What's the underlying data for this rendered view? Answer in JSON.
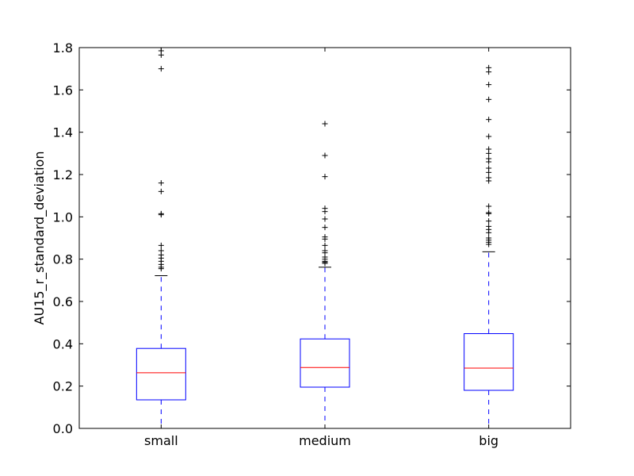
{
  "chart_data": {
    "type": "box",
    "xlabel": "",
    "ylabel": "AU15_r_standard_deviation",
    "ylim": [
      0.0,
      1.8
    ],
    "yticks": [
      "0.0",
      "0.2",
      "0.4",
      "0.6",
      "0.8",
      "1.0",
      "1.2",
      "1.4",
      "1.6",
      "1.8"
    ],
    "categories": [
      "small",
      "medium",
      "big"
    ],
    "grid": false,
    "colors": {
      "box": "#0000ff",
      "median": "#ff0000",
      "whisker": "#0000ff",
      "cap": "#000000",
      "flier": "#000000"
    },
    "boxes": [
      {
        "label": "small",
        "whisker_low": 0.0,
        "q1": 0.135,
        "median": 0.263,
        "q3": 0.378,
        "whisker_high": 0.722,
        "fliers": [
          0.755,
          0.762,
          0.775,
          0.79,
          0.805,
          0.82,
          0.84,
          0.865,
          1.01,
          1.015,
          1.12,
          1.16,
          1.7,
          1.765,
          1.785
        ]
      },
      {
        "label": "medium",
        "whisker_low": 0.0,
        "q1": 0.195,
        "median": 0.288,
        "q3": 0.423,
        "whisker_high": 0.762,
        "fliers": [
          0.78,
          0.785,
          0.79,
          0.8,
          0.81,
          0.83,
          0.84,
          0.865,
          0.895,
          0.905,
          0.95,
          0.99,
          1.025,
          1.04,
          1.19,
          1.29,
          1.44
        ]
      },
      {
        "label": "big",
        "whisker_low": 0.0,
        "q1": 0.18,
        "median": 0.285,
        "q3": 0.448,
        "whisker_high": 0.835,
        "fliers": [
          0.87,
          0.88,
          0.89,
          0.9,
          0.925,
          0.94,
          0.955,
          0.98,
          1.015,
          1.02,
          1.05,
          1.17,
          1.185,
          1.21,
          1.23,
          1.26,
          1.275,
          1.3,
          1.32,
          1.38,
          1.46,
          1.555,
          1.625,
          1.685,
          1.705
        ]
      }
    ]
  }
}
